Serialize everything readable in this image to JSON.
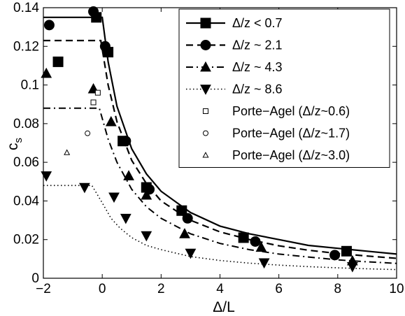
{
  "chart_data": {
    "type": "line",
    "xlabel": "Δ/L",
    "ylabel_main": "c",
    "ylabel_sub": "s",
    "xlim": [
      -2,
      10
    ],
    "ylim": [
      0,
      0.14
    ],
    "xticks": [
      -2,
      0,
      2,
      4,
      6,
      8,
      10
    ],
    "yticks": [
      0,
      0.02,
      0.04,
      0.06,
      0.08,
      0.1,
      0.12,
      0.14
    ],
    "xtick_labels": [
      "−2",
      "0",
      "2",
      "4",
      "6",
      "8",
      "10"
    ],
    "ytick_labels": [
      "0",
      "0.02",
      "0.04",
      "0.06",
      "0.08",
      "0.1",
      "0.12",
      "0.14"
    ],
    "grid": false,
    "legend_position": "top-right",
    "series": [
      {
        "name": "Δ/z < 0.7",
        "marker": "square-filled",
        "line": "solid",
        "x": [
          -0.2,
          -1.5,
          0.2,
          0.7,
          1.5,
          2.7,
          4.8,
          8.3
        ],
        "y": [
          0.135,
          0.112,
          0.117,
          0.071,
          0.047,
          0.035,
          0.021,
          0.014
        ],
        "curve": {
          "plateau": 0.135,
          "knee": 0.0,
          "x": [
            -2,
            0,
            0.2,
            0.5,
            1,
            1.5,
            2,
            3,
            4,
            5,
            6,
            7,
            8,
            9,
            10
          ],
          "y": [
            0.135,
            0.135,
            0.112,
            0.089,
            0.067,
            0.054,
            0.045,
            0.034,
            0.027,
            0.023,
            0.02,
            0.017,
            0.0155,
            0.014,
            0.0125
          ]
        }
      },
      {
        "name": "Δ/z ~ 2.1",
        "marker": "circle-filled",
        "line": "dashed",
        "x": [
          -1.8,
          -0.3,
          0.1,
          0.8,
          1.6,
          2.9,
          5.2,
          7.9
        ],
        "y": [
          0.131,
          0.138,
          0.12,
          0.071,
          0.046,
          0.031,
          0.019,
          0.012
        ],
        "curve": {
          "x": [
            -2,
            -0.05,
            0.2,
            0.5,
            1,
            1.5,
            2,
            3,
            4,
            5,
            6,
            7,
            8,
            9,
            10
          ],
          "y": [
            0.123,
            0.123,
            0.1,
            0.081,
            0.061,
            0.049,
            0.04,
            0.03,
            0.024,
            0.02,
            0.0168,
            0.0145,
            0.0128,
            0.0115,
            0.0103
          ]
        }
      },
      {
        "name": "Δ/z ~ 4.3",
        "marker": "triangle-up-filled",
        "line": "dash-dot",
        "x": [
          -1.9,
          -0.3,
          0.3,
          0.9,
          1.5,
          2.8,
          5.4,
          8.5
        ],
        "y": [
          0.106,
          0.098,
          0.081,
          0.053,
          0.043,
          0.023,
          0.016,
          0.009
        ],
        "curve": {
          "x": [
            -2,
            -0.1,
            0.2,
            0.5,
            1,
            1.5,
            2,
            3,
            4,
            5,
            6,
            7,
            8,
            9,
            10
          ],
          "y": [
            0.088,
            0.088,
            0.072,
            0.06,
            0.046,
            0.037,
            0.031,
            0.023,
            0.018,
            0.0148,
            0.0125,
            0.011,
            0.0095,
            0.0085,
            0.0077
          ]
        }
      },
      {
        "name": "Δ/z ~ 8.6",
        "marker": "triangle-down-filled",
        "line": "dotted",
        "x": [
          -1.9,
          -0.6,
          0.4,
          0.8,
          1.5,
          3.0,
          5.5,
          8.5
        ],
        "y": [
          0.053,
          0.047,
          0.042,
          0.031,
          0.022,
          0.013,
          0.008,
          0.006
        ],
        "curve": {
          "x": [
            -2,
            -0.35,
            0,
            0.3,
            0.6,
            1,
            1.5,
            2,
            3,
            4,
            5,
            6,
            7,
            8,
            9,
            10
          ],
          "y": [
            0.048,
            0.048,
            0.039,
            0.031,
            0.026,
            0.021,
            0.017,
            0.0148,
            0.0112,
            0.0092,
            0.0078,
            0.0068,
            0.006,
            0.0054,
            0.0049,
            0.0045
          ]
        }
      },
      {
        "name": "Porte−Agel (Δ/z~0.6)",
        "marker": "square-open",
        "line": "none",
        "x": [
          -0.3,
          -0.15
        ],
        "y": [
          0.091,
          0.096
        ]
      },
      {
        "name": "Porte−Agel (Δ/z~1.7)",
        "marker": "circle-open",
        "line": "none",
        "x": [
          -0.5
        ],
        "y": [
          0.075
        ]
      },
      {
        "name": "Porte−Agel (Δ/z~3.0)",
        "marker": "triangle-up-open",
        "line": "none",
        "x": [
          -1.2
        ],
        "y": [
          0.065
        ]
      }
    ]
  }
}
